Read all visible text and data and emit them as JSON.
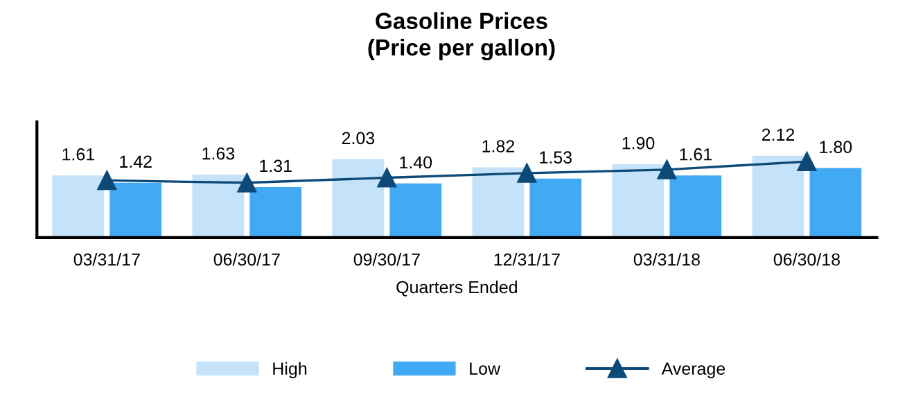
{
  "chart_data": {
    "type": "bar",
    "title": "Gasoline Prices\n(Price per gallon)",
    "xlabel": "Quarters Ended",
    "categories": [
      "03/31/17",
      "06/30/17",
      "09/30/17",
      "12/31/17",
      "03/31/18",
      "06/30/18"
    ],
    "series": [
      {
        "name": "High",
        "color": "#c4e3fa",
        "values": [
          1.61,
          1.63,
          2.03,
          1.82,
          1.9,
          2.12
        ],
        "value_labels": [
          "1.61",
          "1.63",
          "2.03",
          "1.82",
          "1.90",
          "2.12"
        ]
      },
      {
        "name": "Low",
        "color": "#42aaf5",
        "values": [
          1.42,
          1.31,
          1.4,
          1.53,
          1.61,
          1.8
        ],
        "value_labels": [
          "1.42",
          "1.31",
          "1.40",
          "1.53",
          "1.61",
          "1.80"
        ]
      },
      {
        "name": "Average",
        "type": "line",
        "color": "#0d4a78",
        "marker": "triangle",
        "values": [
          1.48,
          1.42,
          1.55,
          1.67,
          1.76,
          1.97
        ]
      }
    ],
    "ylim": [
      0,
      3
    ],
    "tick_labels": "x",
    "grid": false,
    "legend": "bottom"
  }
}
